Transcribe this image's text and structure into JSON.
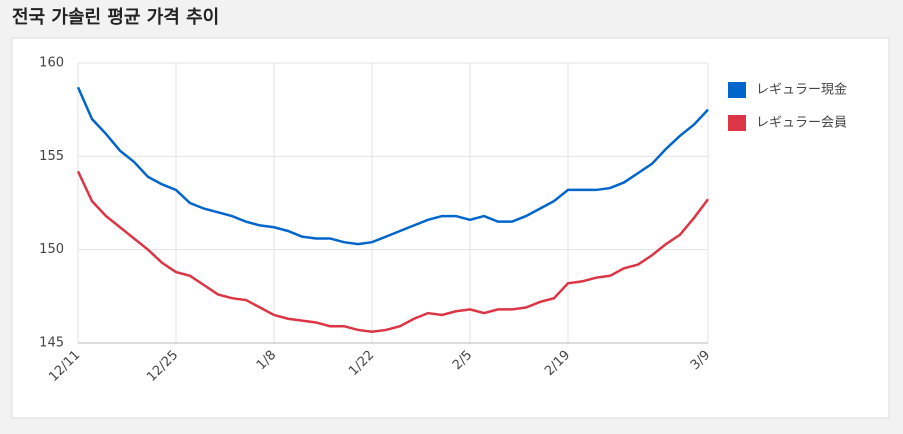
{
  "chart_data": {
    "type": "line",
    "title": "전국 가솔린 평균 가격 추이",
    "categories": [
      "12/11",
      null,
      null,
      null,
      null,
      null,
      null,
      "12/25",
      null,
      null,
      null,
      null,
      null,
      null,
      "1/8",
      null,
      null,
      null,
      null,
      null,
      null,
      "1/22",
      null,
      null,
      null,
      null,
      null,
      null,
      "2/5",
      null,
      null,
      null,
      null,
      null,
      null,
      "2/19",
      null,
      null,
      null,
      null,
      null,
      null,
      null,
      null,
      null,
      "3/9"
    ],
    "series": [
      {
        "name": "レギュラー現金",
        "color": "#0066cc",
        "values": [
          158.7,
          157.0,
          156.2,
          155.3,
          154.7,
          153.9,
          153.5,
          153.2,
          152.5,
          152.2,
          152.0,
          151.8,
          151.5,
          151.3,
          151.2,
          151.0,
          150.7,
          150.6,
          150.6,
          150.4,
          150.3,
          150.4,
          150.7,
          151.0,
          151.3,
          151.6,
          151.8,
          151.8,
          151.6,
          151.8,
          151.5,
          151.5,
          151.8,
          152.2,
          152.6,
          153.2,
          153.2,
          153.2,
          153.3,
          153.6,
          154.1,
          154.6,
          155.4,
          156.1,
          156.7,
          157.5
        ]
      },
      {
        "name": "レギュラー会員",
        "color": "#dc3545",
        "values": [
          154.2,
          152.6,
          151.8,
          151.2,
          150.6,
          150.0,
          149.3,
          148.8,
          148.6,
          148.1,
          147.6,
          147.4,
          147.3,
          146.9,
          146.5,
          146.3,
          146.2,
          146.1,
          145.9,
          145.9,
          145.7,
          145.6,
          145.7,
          145.9,
          146.3,
          146.6,
          146.5,
          146.7,
          146.8,
          146.6,
          146.8,
          146.8,
          146.9,
          147.2,
          147.4,
          148.2,
          148.3,
          148.5,
          148.6,
          149.0,
          149.2,
          149.7,
          150.3,
          150.8,
          151.7,
          152.7
        ]
      }
    ],
    "ylim": [
      145,
      160
    ],
    "yticks": [
      145,
      150,
      155,
      160
    ],
    "grid": true,
    "legend": "right"
  }
}
